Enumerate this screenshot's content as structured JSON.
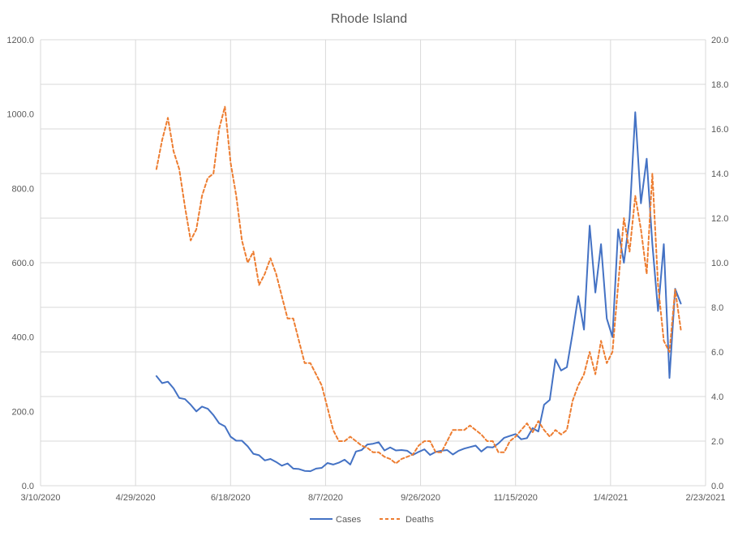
{
  "chart_data": {
    "type": "line",
    "title": "Rhode Island",
    "x_ticks": [
      "3/10/2020",
      "4/29/2020",
      "6/18/2020",
      "8/7/2020",
      "9/26/2020",
      "11/15/2020",
      "1/4/2021",
      "2/23/2021"
    ],
    "x_range": [
      "2020-03-10",
      "2021-02-23"
    ],
    "y_left": {
      "min": 0,
      "max": 1200,
      "ticks": [
        "0.0",
        "200.0",
        "400.0",
        "600.0",
        "800.0",
        "1000.0",
        "1200.0"
      ]
    },
    "y_right": {
      "min": 0,
      "max": 20,
      "ticks": [
        "0.0",
        "2.0",
        "4.0",
        "6.0",
        "8.0",
        "10.0",
        "12.0",
        "14.0",
        "16.0",
        "18.0",
        "20.0"
      ]
    },
    "grid": "vertical and horizontal",
    "legend_position": "bottom",
    "series": [
      {
        "name": "Cases",
        "axis": "left",
        "color": "#4472c4",
        "style": "solid",
        "start_date": "2020-05-10",
        "step_days": 3,
        "values": [
          295,
          276,
          280,
          262,
          236,
          233,
          218,
          200,
          213,
          207,
          190,
          168,
          160,
          132,
          121,
          121,
          106,
          86,
          82,
          68,
          72,
          64,
          54,
          60,
          46,
          45,
          40,
          39,
          46,
          48,
          61,
          57,
          62,
          70,
          57,
          92,
          96,
          111,
          113,
          117,
          95,
          103,
          95,
          96,
          94,
          83,
          91,
          98,
          83,
          91,
          94,
          96,
          84,
          94,
          100,
          104,
          108,
          92,
          104,
          103,
          114,
          129,
          134,
          139,
          125,
          128,
          155,
          146,
          218,
          231,
          340,
          310,
          319,
          410,
          510,
          420,
          700,
          520,
          650,
          450,
          400,
          690,
          600,
          720,
          1005,
          760,
          880,
          650,
          470,
          650,
          290,
          530,
          490
        ]
      },
      {
        "name": "Deaths",
        "axis": "right",
        "color": "#ed7d31",
        "style": "dashed",
        "start_date": "2020-05-10",
        "step_days": 3,
        "values": [
          14.2,
          15.5,
          16.5,
          15.0,
          14.2,
          12.5,
          11.0,
          11.5,
          13.0,
          13.8,
          14.0,
          16.0,
          17.0,
          14.5,
          13.0,
          11.0,
          10.0,
          10.5,
          9.0,
          9.5,
          10.2,
          9.5,
          8.5,
          7.5,
          7.5,
          6.5,
          5.5,
          5.5,
          5.0,
          4.5,
          3.5,
          2.5,
          2.0,
          2.0,
          2.2,
          2.0,
          1.8,
          1.7,
          1.5,
          1.5,
          1.3,
          1.2,
          1.0,
          1.2,
          1.3,
          1.4,
          1.8,
          2.0,
          2.0,
          1.5,
          1.5,
          2.0,
          2.5,
          2.5,
          2.5,
          2.7,
          2.5,
          2.3,
          2.0,
          2.0,
          1.5,
          1.5,
          2.0,
          2.2,
          2.5,
          2.8,
          2.4,
          2.9,
          2.5,
          2.2,
          2.5,
          2.3,
          2.5,
          3.8,
          4.5,
          5.0,
          6.0,
          5.0,
          6.5,
          5.5,
          6.0,
          9.0,
          12.0,
          10.5,
          13.0,
          11.5,
          9.5,
          14.0,
          9.0,
          6.5,
          6.0,
          8.8,
          7.0
        ]
      }
    ]
  }
}
